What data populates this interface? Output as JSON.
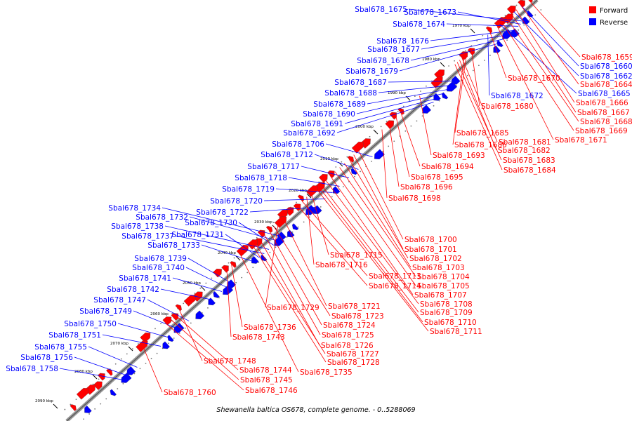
{
  "legend": {
    "forward_label": "Forward",
    "reverse_label": "Reverse",
    "forward_color": "#ff0000",
    "reverse_color": "#0000ff"
  },
  "caption": "Shewanella baltica OS678, complete genome. - 0..5288069",
  "ticks": [
    "1970 kbp",
    "1980 kbp",
    "1990 kbp",
    "2000 kbp",
    "2010 kbp",
    "2020 kbp",
    "2030 kbp",
    "2040 kbp",
    "2050 kbp",
    "2060 kbp",
    "2070 kbp",
    "2080 kbp",
    "2090 kbp"
  ],
  "reverse_genes": [
    "Sbal678_1675",
    "Sbal678_1673",
    "Sbal678_1674",
    "Sbal678_1676",
    "Sbal678_1677",
    "Sbal678_1678",
    "Sbal678_1679",
    "Sbal678_1687",
    "Sbal678_1688",
    "Sbal678_1689",
    "Sbal678_1690",
    "Sbal678_1691",
    "Sbal678_1692",
    "Sbal678_1706",
    "Sbal678_1712",
    "Sbal678_1717",
    "Sbal678_1718",
    "Sbal678_1719",
    "Sbal678_1720",
    "Sbal678_1722",
    "Sbal678_1734",
    "Sbal678_1732",
    "Sbal678_1730",
    "Sbal678_1738",
    "Sbal678_1737",
    "Sbal678_1731",
    "Sbal678_1733",
    "Sbal678_1739",
    "Sbal678_1740",
    "Sbal678_1741",
    "Sbal678_1742",
    "Sbal678_1747",
    "Sbal678_1749",
    "Sbal678_1750",
    "Sbal678_1751",
    "Sbal678_1755",
    "Sbal678_1756",
    "Sbal678_1758",
    "Sbal678_1660",
    "Sbal678_1662",
    "Sbal678_1665",
    "Sbal678_1672"
  ],
  "forward_genes": [
    "Sbal678_1659",
    "Sbal678_1664",
    "Sbal678_1666",
    "Sbal678_1667",
    "Sbal678_1668",
    "Sbal678_1669",
    "Sbal678_1671",
    "Sbal678_1670",
    "Sbal678_1680",
    "Sbal678_1685",
    "Sbal678_1686",
    "Sbal678_1681",
    "Sbal678_1682",
    "Sbal678_1683",
    "Sbal678_1684",
    "Sbal678_1693",
    "Sbal678_1694",
    "Sbal678_1695",
    "Sbal678_1696",
    "Sbal678_1698",
    "Sbal678_1700",
    "Sbal678_1701",
    "Sbal678_1702",
    "Sbal678_1703",
    "Sbal678_1704",
    "Sbal678_1705",
    "Sbal678_1707",
    "Sbal678_1708",
    "Sbal678_1709",
    "Sbal678_1710",
    "Sbal678_1711",
    "Sbal678_1715",
    "Sbal678_1716",
    "Sbal678_1713",
    "Sbal678_1714",
    "Sbal678_1721",
    "Sbal678_1729",
    "Sbal678_1723",
    "Sbal678_1724",
    "Sbal678_1725",
    "Sbal678_1726",
    "Sbal678_1727",
    "Sbal678_1728",
    "Sbal678_1735",
    "Sbal678_1736",
    "Sbal678_1743",
    "Sbal678_1748",
    "Sbal678_1744",
    "Sbal678_1745",
    "Sbal678_1746",
    "Sbal678_1760"
  ]
}
